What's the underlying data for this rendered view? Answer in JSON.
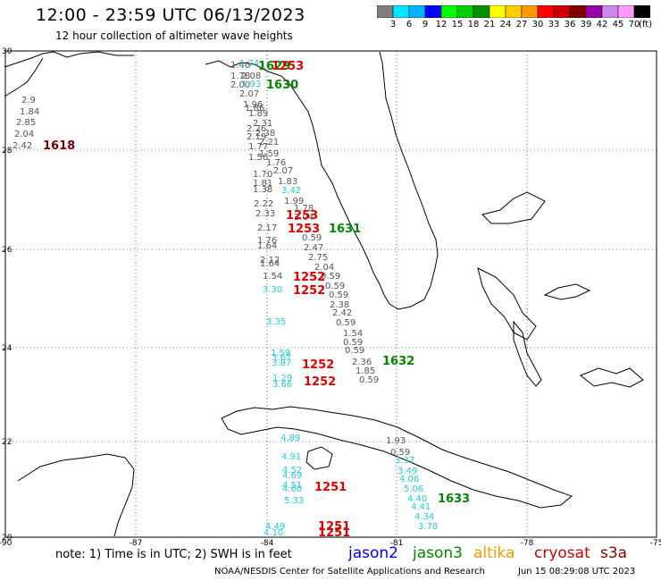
{
  "title": "12:00 - 23:59 UTC 06/13/2023",
  "subtitle": "12 hour collection of altimeter wave heights",
  "colorbar": {
    "colors": [
      "#7f7f7f",
      "#00e5ff",
      "#00b3ff",
      "#0000ff",
      "#00ff00",
      "#00d000",
      "#009000",
      "#ffff00",
      "#ffcc00",
      "#ff9900",
      "#ff0000",
      "#cc0000",
      "#800000",
      "#9900aa",
      "#cc88ee",
      "#ff99ff",
      "#000000"
    ],
    "labels": [
      "3",
      "6",
      "9",
      "12",
      "15",
      "18",
      "21",
      "24",
      "27",
      "30",
      "33",
      "36",
      "39",
      "42",
      "45",
      "70"
    ],
    "unit": "(ft)"
  },
  "axes": {
    "lat_labels": [
      "30",
      "28",
      "26",
      "24",
      "22",
      "20"
    ],
    "lon_labels": [
      "-90",
      "-87",
      "-84",
      "-81",
      "-78",
      "-75"
    ]
  },
  "swh_values": [
    {
      "v": "1.40",
      "c": "gray"
    },
    {
      "v": "1.74",
      "c": "cyan"
    },
    {
      "v": "1.78",
      "c": "gray"
    },
    {
      "v": "2.08",
      "c": "gray"
    },
    {
      "v": "2.00",
      "c": "gray"
    },
    {
      "v": "1.93",
      "c": "cyan"
    },
    {
      "v": "2.07",
      "c": "gray"
    },
    {
      "v": "1.96",
      "c": "gray"
    },
    {
      "v": "1.86",
      "c": "gray"
    },
    {
      "v": "1.89",
      "c": "gray"
    },
    {
      "v": "2.31",
      "c": "gray"
    },
    {
      "v": "2.26",
      "c": "gray"
    },
    {
      "v": "2.38",
      "c": "gray"
    },
    {
      "v": "2.19",
      "c": "gray"
    },
    {
      "v": "2.21",
      "c": "gray"
    },
    {
      "v": "1.77",
      "c": "gray"
    },
    {
      "v": "1.59",
      "c": "gray"
    },
    {
      "v": "1.56",
      "c": "gray"
    },
    {
      "v": "1.76",
      "c": "gray"
    },
    {
      "v": "2.07",
      "c": "gray"
    },
    {
      "v": "1.70",
      "c": "gray"
    },
    {
      "v": "1.81",
      "c": "gray"
    },
    {
      "v": "1.83",
      "c": "gray"
    },
    {
      "v": "1.38",
      "c": "gray"
    },
    {
      "v": "3.42",
      "c": "cyan"
    },
    {
      "v": "1.99",
      "c": "gray"
    },
    {
      "v": "2.22",
      "c": "gray"
    },
    {
      "v": "1.78",
      "c": "gray"
    },
    {
      "v": "2.33",
      "c": "gray"
    },
    {
      "v": "2.04",
      "c": "gray"
    },
    {
      "v": "2.17",
      "c": "gray"
    },
    {
      "v": "0.59",
      "c": "gray"
    },
    {
      "v": "1.76",
      "c": "gray"
    },
    {
      "v": "1.64",
      "c": "gray"
    },
    {
      "v": "2.47",
      "c": "gray"
    },
    {
      "v": "2.12",
      "c": "gray"
    },
    {
      "v": "2.75",
      "c": "gray"
    },
    {
      "v": "1.64",
      "c": "gray"
    },
    {
      "v": "2.04",
      "c": "gray"
    },
    {
      "v": "1.54",
      "c": "gray"
    },
    {
      "v": "0.59",
      "c": "gray"
    },
    {
      "v": "3.30",
      "c": "cyan"
    },
    {
      "v": "0.59",
      "c": "gray"
    },
    {
      "v": "0.59",
      "c": "gray"
    },
    {
      "v": "2.38",
      "c": "gray"
    },
    {
      "v": "2.42",
      "c": "gray"
    },
    {
      "v": "3.35",
      "c": "cyan"
    },
    {
      "v": "0.59",
      "c": "gray"
    },
    {
      "v": "1.54",
      "c": "gray"
    },
    {
      "v": "0.59",
      "c": "gray"
    },
    {
      "v": "1.59",
      "c": "cyan"
    },
    {
      "v": "0.59",
      "c": "gray"
    },
    {
      "v": "3.67",
      "c": "cyan"
    },
    {
      "v": "3.87",
      "c": "cyan"
    },
    {
      "v": "2.36",
      "c": "gray"
    },
    {
      "v": "1.85",
      "c": "gray"
    },
    {
      "v": "1.29",
      "c": "cyan"
    },
    {
      "v": "0.59",
      "c": "gray"
    },
    {
      "v": "3.66",
      "c": "cyan"
    },
    {
      "v": "2.42",
      "c": "gray"
    },
    {
      "v": "2.85",
      "c": "gray"
    },
    {
      "v": "2.04",
      "c": "gray"
    },
    {
      "v": "1.84",
      "c": "gray"
    },
    {
      "v": "2.9",
      "c": "gray"
    },
    {
      "v": "4.89",
      "c": "cyan"
    },
    {
      "v": "4.91",
      "c": "cyan"
    },
    {
      "v": "4.52",
      "c": "cyan"
    },
    {
      "v": "4.69",
      "c": "cyan"
    },
    {
      "v": "4.51",
      "c": "cyan"
    },
    {
      "v": "4.60",
      "c": "cyan"
    },
    {
      "v": "5.33",
      "c": "cyan"
    },
    {
      "v": "4.49",
      "c": "cyan"
    },
    {
      "v": "4.10",
      "c": "cyan"
    },
    {
      "v": "1.93",
      "c": "gray"
    },
    {
      "v": "0.59",
      "c": "gray"
    },
    {
      "v": "3.37",
      "c": "cyan"
    },
    {
      "v": "3.49",
      "c": "cyan"
    },
    {
      "v": "4.06",
      "c": "cyan"
    },
    {
      "v": "5.06",
      "c": "cyan"
    },
    {
      "v": "4.40",
      "c": "cyan"
    },
    {
      "v": "4.41",
      "c": "cyan"
    },
    {
      "v": "4.34",
      "c": "cyan"
    },
    {
      "v": "3.78",
      "c": "cyan"
    }
  ],
  "pass_times": [
    {
      "v": "1618",
      "c": "darkred"
    },
    {
      "v": "1629",
      "c": "green"
    },
    {
      "v": "1253",
      "c": "red"
    },
    {
      "v": "1630",
      "c": "green"
    },
    {
      "v": "1253",
      "c": "red"
    },
    {
      "v": "1253",
      "c": "red"
    },
    {
      "v": "1631",
      "c": "green"
    },
    {
      "v": "1252",
      "c": "red"
    },
    {
      "v": "1252",
      "c": "red"
    },
    {
      "v": "1252",
      "c": "red"
    },
    {
      "v": "1632",
      "c": "green"
    },
    {
      "v": "1252",
      "c": "red"
    },
    {
      "v": "1251",
      "c": "red"
    },
    {
      "v": "1633",
      "c": "green"
    },
    {
      "v": "1251",
      "c": "red"
    },
    {
      "v": "1251",
      "c": "red"
    }
  ],
  "note": "note: 1) Time is in UTC; 2) SWH is in feet",
  "missions": [
    {
      "name": "jason2",
      "color": "#0000ff"
    },
    {
      "name": "jason3",
      "color": "#008800"
    },
    {
      "name": "altika",
      "color": "#ff9900"
    },
    {
      "name": "cryosat",
      "color": "#cc0000"
    },
    {
      "name": "s3a",
      "color": "#880000"
    }
  ],
  "credit": "NOAA/NESDIS Center for Satellite Applications and Research",
  "timestamp": "Jun 15 08:29:08 UTC 2023"
}
